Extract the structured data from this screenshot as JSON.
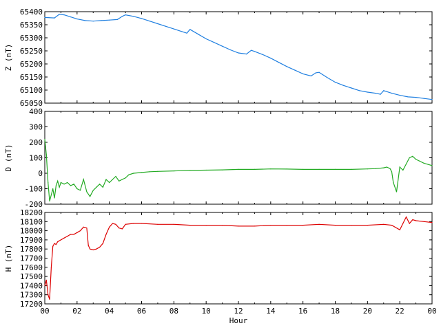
{
  "chart_data": [
    {
      "type": "line",
      "ylabel": "Z (nT)",
      "ylim": [
        65050,
        65400
      ],
      "yticks": [
        "65400",
        "65350",
        "65300",
        "65250",
        "65200",
        "65150",
        "65100",
        "65050"
      ],
      "xlim": [
        0,
        24
      ],
      "series": [
        {
          "color": "#1f7fe0",
          "x": [
            0,
            0.6,
            0.9,
            1.2,
            1.6,
            2.0,
            2.5,
            3.0,
            3.5,
            4.0,
            4.5,
            4.8,
            5.0,
            5.5,
            6.0,
            6.5,
            7.0,
            7.5,
            8.0,
            8.5,
            8.8,
            9.0,
            9.5,
            10.0,
            10.5,
            11.0,
            11.5,
            12.0,
            12.5,
            12.8,
            13.0,
            13.5,
            14.0,
            14.5,
            15.0,
            15.5,
            16.0,
            16.5,
            16.8,
            17.0,
            17.5,
            18.0,
            18.5,
            19.0,
            19.5,
            20.0,
            20.5,
            20.8,
            21.0,
            21.5,
            22.0,
            22.5,
            23.0,
            23.5,
            24.0
          ],
          "values": [
            65378,
            65376,
            65390,
            65388,
            65380,
            65372,
            65366,
            65364,
            65366,
            65368,
            65370,
            65382,
            65388,
            65382,
            65374,
            65364,
            65354,
            65344,
            65334,
            65324,
            65318,
            65332,
            65314,
            65296,
            65282,
            65268,
            65254,
            65242,
            65238,
            65252,
            65248,
            65236,
            65222,
            65206,
            65190,
            65176,
            65162,
            65154,
            65166,
            65168,
            65148,
            65130,
            65118,
            65108,
            65098,
            65092,
            65088,
            65084,
            65098,
            65088,
            65080,
            65074,
            65072,
            65068,
            65064
          ]
        }
      ]
    },
    {
      "type": "line",
      "ylabel": "D (nT)",
      "ylim": [
        -200,
        400
      ],
      "yticks": [
        "400",
        "300",
        "200",
        "100",
        "0",
        "-100",
        "-200"
      ],
      "xlim": [
        0,
        24
      ],
      "series": [
        {
          "color": "#22aa22",
          "x": [
            0,
            0.1,
            0.2,
            0.3,
            0.4,
            0.5,
            0.6,
            0.7,
            0.8,
            0.9,
            1.0,
            1.2,
            1.4,
            1.6,
            1.8,
            2.0,
            2.2,
            2.4,
            2.6,
            2.8,
            3.0,
            3.2,
            3.4,
            3.6,
            3.8,
            4.0,
            4.2,
            4.4,
            4.6,
            4.8,
            5.0,
            5.2,
            5.5,
            6.0,
            6.5,
            7.0,
            8.0,
            9.0,
            10.0,
            11.0,
            12.0,
            13.0,
            14.0,
            15.0,
            16.0,
            17.0,
            18.0,
            19.0,
            20.0,
            20.5,
            21.0,
            21.2,
            21.4,
            21.5,
            21.6,
            21.8,
            22.0,
            22.2,
            22.4,
            22.6,
            22.8,
            23.0,
            23.2,
            23.5,
            24.0
          ],
          "values": [
            220,
            120,
            -60,
            -180,
            -140,
            -100,
            -160,
            -80,
            -50,
            -90,
            -60,
            -70,
            -60,
            -80,
            -70,
            -100,
            -110,
            -40,
            -120,
            -150,
            -110,
            -90,
            -70,
            -90,
            -40,
            -60,
            -40,
            -20,
            -50,
            -40,
            -30,
            -10,
            0,
            5,
            10,
            12,
            15,
            18,
            20,
            22,
            25,
            25,
            28,
            27,
            25,
            25,
            25,
            25,
            28,
            30,
            35,
            40,
            30,
            10,
            -60,
            -120,
            40,
            20,
            60,
            100,
            110,
            90,
            80,
            65,
            50
          ]
        }
      ]
    },
    {
      "type": "line",
      "ylabel": "H (nT)",
      "ylim": [
        17200,
        18200
      ],
      "yticks": [
        "18200",
        "18100",
        "18000",
        "17900",
        "17800",
        "17700",
        "17600",
        "17500",
        "17400",
        "17300",
        "17200"
      ],
      "xlim": [
        0,
        24
      ],
      "xlabel": "Hour",
      "xticks": [
        "00",
        "02",
        "04",
        "06",
        "08",
        "10",
        "12",
        "14",
        "16",
        "18",
        "20",
        "22",
        "00"
      ],
      "series": [
        {
          "color": "#dd0000",
          "x": [
            0,
            0.1,
            0.2,
            0.3,
            0.4,
            0.5,
            0.6,
            0.7,
            0.8,
            1.0,
            1.2,
            1.4,
            1.6,
            1.8,
            2.0,
            2.2,
            2.4,
            2.6,
            2.7,
            2.8,
            3.0,
            3.2,
            3.4,
            3.6,
            3.8,
            4.0,
            4.2,
            4.4,
            4.6,
            4.8,
            5.0,
            5.5,
            6.0,
            7.0,
            8.0,
            9.0,
            10.0,
            11.0,
            12.0,
            13.0,
            14.0,
            15.0,
            16.0,
            17.0,
            18.0,
            19.0,
            20.0,
            21.0,
            21.5,
            22.0,
            22.2,
            22.4,
            22.6,
            22.8,
            23.0,
            23.5,
            24.0
          ],
          "values": [
            17400,
            17460,
            17300,
            17250,
            17600,
            17830,
            17860,
            17850,
            17880,
            17900,
            17920,
            17940,
            17960,
            17960,
            17980,
            18000,
            18040,
            18030,
            17840,
            17800,
            17790,
            17800,
            17820,
            17860,
            17960,
            18040,
            18080,
            18070,
            18030,
            18020,
            18070,
            18080,
            18080,
            18070,
            18070,
            18060,
            18060,
            18060,
            18050,
            18050,
            18060,
            18060,
            18060,
            18070,
            18060,
            18060,
            18060,
            18070,
            18060,
            18010,
            18080,
            18150,
            18080,
            18120,
            18110,
            18100,
            18090
          ]
        }
      ]
    }
  ]
}
